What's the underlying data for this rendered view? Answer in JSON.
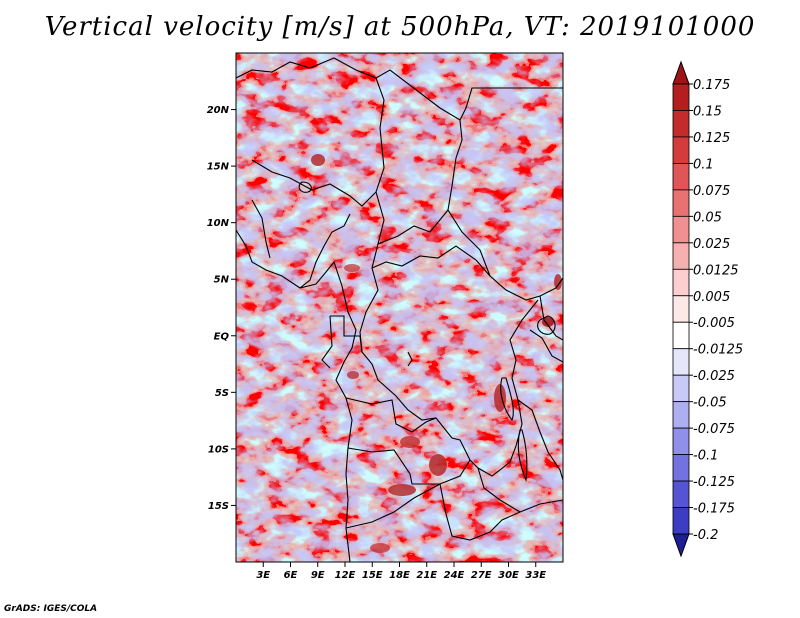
{
  "title": "Vertical velocity [m/s] at 500hPa, VT: 2019101000",
  "credit": "GrADS: IGES/COLA",
  "map": {
    "lon_range": [
      0,
      36
    ],
    "lat_range": [
      -20,
      25
    ],
    "lat_ticks": [
      {
        "value": 20,
        "label": "20N"
      },
      {
        "value": 15,
        "label": "15N"
      },
      {
        "value": 10,
        "label": "10N"
      },
      {
        "value": 5,
        "label": "5N"
      },
      {
        "value": 0,
        "label": "EQ"
      },
      {
        "value": -5,
        "label": "5S"
      },
      {
        "value": -10,
        "label": "10S"
      },
      {
        "value": -15,
        "label": "15S"
      }
    ],
    "lon_ticks": [
      {
        "value": 3,
        "label": "3E"
      },
      {
        "value": 6,
        "label": "6E"
      },
      {
        "value": 9,
        "label": "9E"
      },
      {
        "value": 12,
        "label": "12E"
      },
      {
        "value": 15,
        "label": "15E"
      },
      {
        "value": 18,
        "label": "18E"
      },
      {
        "value": 21,
        "label": "21E"
      },
      {
        "value": 24,
        "label": "24E"
      },
      {
        "value": 27,
        "label": "27E"
      },
      {
        "value": 30,
        "label": "30E"
      },
      {
        "value": 33,
        "label": "33E"
      }
    ]
  },
  "colorbar": {
    "levels": [
      {
        "label": "0.175",
        "color": "#b41e1e"
      },
      {
        "label": "0.15",
        "color": "#c42b2b"
      },
      {
        "label": "0.125",
        "color": "#d43c3c"
      },
      {
        "label": "0.1",
        "color": "#e05555"
      },
      {
        "label": "0.075",
        "color": "#e87272"
      },
      {
        "label": "0.05",
        "color": "#f09090"
      },
      {
        "label": "0.025",
        "color": "#f6b0b0"
      },
      {
        "label": "0.0125",
        "color": "#fbcfcf"
      },
      {
        "label": "0.005",
        "color": "#fde8e8"
      },
      {
        "label": "-0.005",
        "color": "#ffffff"
      },
      {
        "label": "-0.0125",
        "color": "#e6e6fb"
      },
      {
        "label": "-0.025",
        "color": "#c9c9f6"
      },
      {
        "label": "-0.05",
        "color": "#aeaef2"
      },
      {
        "label": "-0.075",
        "color": "#9090ea"
      },
      {
        "label": "-0.1",
        "color": "#7272e0"
      },
      {
        "label": "-0.125",
        "color": "#5555d4"
      },
      {
        "label": "-0.175",
        "color": "#3c3cc4"
      },
      {
        "label": "-0.2",
        "color": "#2a2ab0"
      }
    ],
    "top_color": "#9e1414",
    "bottom_color": "#1e1e96"
  }
}
